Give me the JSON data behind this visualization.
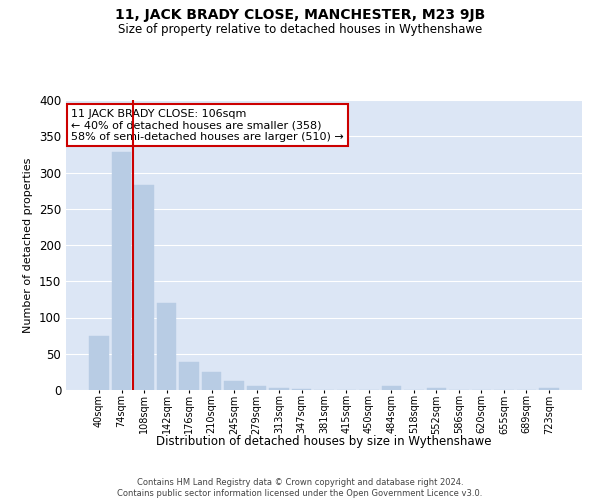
{
  "title": "11, JACK BRADY CLOSE, MANCHESTER, M23 9JB",
  "subtitle": "Size of property relative to detached houses in Wythenshawe",
  "xlabel": "Distribution of detached houses by size in Wythenshawe",
  "ylabel": "Number of detached properties",
  "footer_line1": "Contains HM Land Registry data © Crown copyright and database right 2024.",
  "footer_line2": "Contains public sector information licensed under the Open Government Licence v3.0.",
  "annotation_line1": "11 JACK BRADY CLOSE: 106sqm",
  "annotation_line2": "← 40% of detached houses are smaller (358)",
  "annotation_line3": "58% of semi-detached houses are larger (510) →",
  "categories": [
    "40sqm",
    "74sqm",
    "108sqm",
    "142sqm",
    "176sqm",
    "210sqm",
    "245sqm",
    "279sqm",
    "313sqm",
    "347sqm",
    "381sqm",
    "415sqm",
    "450sqm",
    "484sqm",
    "518sqm",
    "552sqm",
    "586sqm",
    "620sqm",
    "655sqm",
    "689sqm",
    "723sqm"
  ],
  "values": [
    75,
    328,
    283,
    120,
    38,
    25,
    12,
    5,
    3,
    2,
    0,
    0,
    0,
    5,
    0,
    3,
    0,
    0,
    0,
    0,
    3
  ],
  "bar_color": "#b8cce4",
  "bar_edge_color": "#b8cce4",
  "highlight_line_color": "#cc0000",
  "annotation_box_color": "#cc0000",
  "background_color": "#dce6f5",
  "ylim": [
    0,
    400
  ],
  "yticks": [
    0,
    50,
    100,
    150,
    200,
    250,
    300,
    350,
    400
  ]
}
